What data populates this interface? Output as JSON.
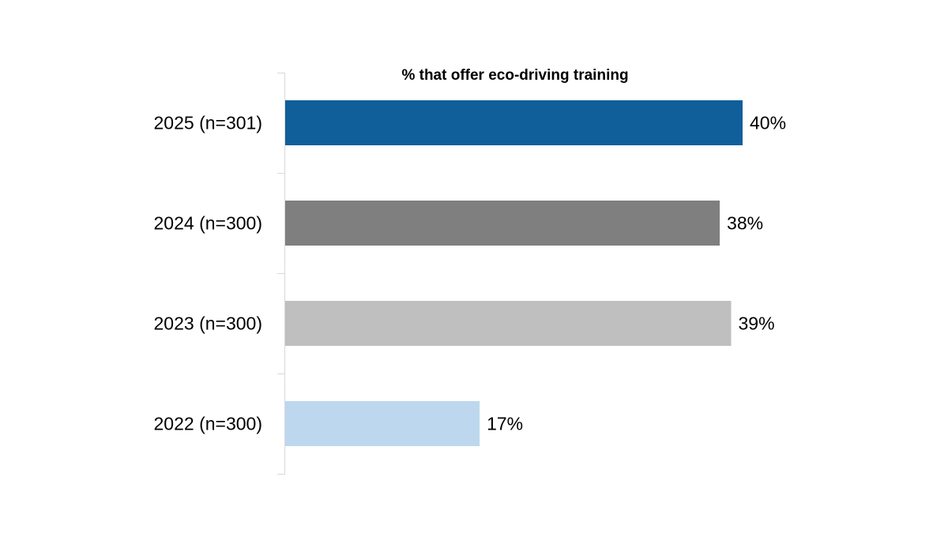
{
  "chart_data": {
    "type": "bar",
    "orientation": "horizontal",
    "title": "% that offer eco-driving training",
    "categories": [
      "2025 (n=301)",
      "2024 (n=300)",
      "2023 (n=300)",
      "2022 (n=300)"
    ],
    "values": [
      40,
      38,
      39,
      17
    ],
    "data_labels": [
      "40%",
      "38%",
      "39%",
      "17%"
    ],
    "colors": [
      "#105F9A",
      "#7F7F7F",
      "#BFBFBF",
      "#BDD7EE"
    ],
    "xlabel": "",
    "ylabel": "",
    "xlim": [
      0,
      40
    ],
    "grid": false,
    "legend": "none"
  }
}
